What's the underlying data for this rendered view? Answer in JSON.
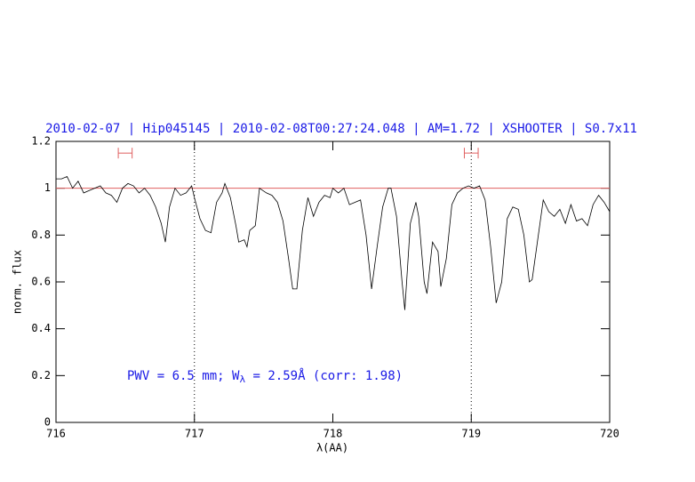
{
  "chart_data": {
    "type": "line",
    "title": "2010-02-07 | Hip045145 | 2010-02-08T00:27:24.048 | AM=1.72 | XSHOOTER | S0.7x11",
    "xlabel": "λ(AA)",
    "ylabel": "norm. flux",
    "annotation": {
      "text": "PWV = 6.5 mm; W",
      "subscript": "λ",
      "rest": " = 2.59Å (corr: 1.98)"
    },
    "xlim": [
      716,
      720
    ],
    "ylim": [
      0,
      1.2
    ],
    "xticks": [
      716,
      717,
      718,
      719,
      720
    ],
    "yticks": [
      0,
      0.2,
      0.4,
      0.6,
      0.8,
      1,
      1.2
    ],
    "reference_vlines": [
      717,
      719
    ],
    "reference_hline": {
      "value": 1,
      "color": "#e06060"
    },
    "continuum_windows": {
      "color": "#e06060",
      "y": 1.15,
      "ranges": [
        [
          716.45,
          716.55
        ],
        [
          718.95,
          719.05
        ]
      ]
    },
    "series": [
      {
        "color": "#000000",
        "x": [
          716.0,
          716.04,
          716.08,
          716.12,
          716.16,
          716.2,
          716.24,
          716.28,
          716.32,
          716.36,
          716.4,
          716.44,
          716.48,
          716.52,
          716.56,
          716.6,
          716.64,
          716.68,
          716.72,
          716.76,
          716.79,
          716.82,
          716.86,
          716.9,
          716.94,
          716.98,
          717.0,
          717.04,
          717.08,
          717.12,
          717.16,
          717.2,
          717.22,
          717.26,
          717.3,
          717.32,
          717.36,
          717.38,
          717.4,
          717.44,
          717.47,
          717.52,
          717.56,
          717.6,
          717.64,
          717.68,
          717.71,
          717.74,
          717.78,
          717.82,
          717.86,
          717.9,
          717.94,
          717.98,
          718.0,
          718.04,
          718.08,
          718.12,
          718.16,
          718.2,
          718.24,
          718.28,
          718.32,
          718.36,
          718.4,
          718.42,
          718.46,
          718.5,
          718.52,
          718.56,
          718.6,
          718.62,
          718.66,
          718.68,
          718.72,
          718.76,
          718.78,
          718.82,
          718.86,
          718.9,
          718.94,
          718.98,
          719.02,
          719.06,
          719.1,
          719.14,
          719.18,
          719.22,
          719.26,
          719.3,
          719.34,
          719.38,
          719.42,
          719.44,
          719.48,
          719.52,
          719.56,
          719.6,
          719.64,
          719.68,
          719.72,
          719.76,
          719.8,
          719.84,
          719.88,
          719.92,
          719.96,
          720.0
        ],
        "values": [
          1.04,
          1.04,
          1.05,
          1.0,
          1.03,
          0.98,
          0.99,
          1.0,
          1.01,
          0.98,
          0.97,
          0.94,
          1.0,
          1.02,
          1.01,
          0.98,
          1.0,
          0.97,
          0.92,
          0.85,
          0.77,
          0.92,
          1.0,
          0.97,
          0.98,
          1.01,
          0.96,
          0.87,
          0.82,
          0.81,
          0.94,
          0.98,
          1.02,
          0.96,
          0.84,
          0.77,
          0.78,
          0.75,
          0.82,
          0.84,
          1.0,
          0.98,
          0.97,
          0.94,
          0.86,
          0.7,
          0.57,
          0.57,
          0.82,
          0.96,
          0.88,
          0.94,
          0.97,
          0.96,
          1.0,
          0.98,
          1.0,
          0.93,
          0.94,
          0.95,
          0.8,
          0.57,
          0.75,
          0.92,
          1.0,
          1.0,
          0.88,
          0.6,
          0.48,
          0.85,
          0.94,
          0.88,
          0.6,
          0.55,
          0.77,
          0.73,
          0.58,
          0.7,
          0.93,
          0.98,
          1.0,
          1.01,
          1.0,
          1.01,
          0.95,
          0.75,
          0.51,
          0.6,
          0.87,
          0.92,
          0.91,
          0.8,
          0.6,
          0.61,
          0.78,
          0.95,
          0.9,
          0.88,
          0.91,
          0.85,
          0.93,
          0.86,
          0.87,
          0.84,
          0.93,
          0.97,
          0.94,
          0.9
        ]
      }
    ]
  }
}
